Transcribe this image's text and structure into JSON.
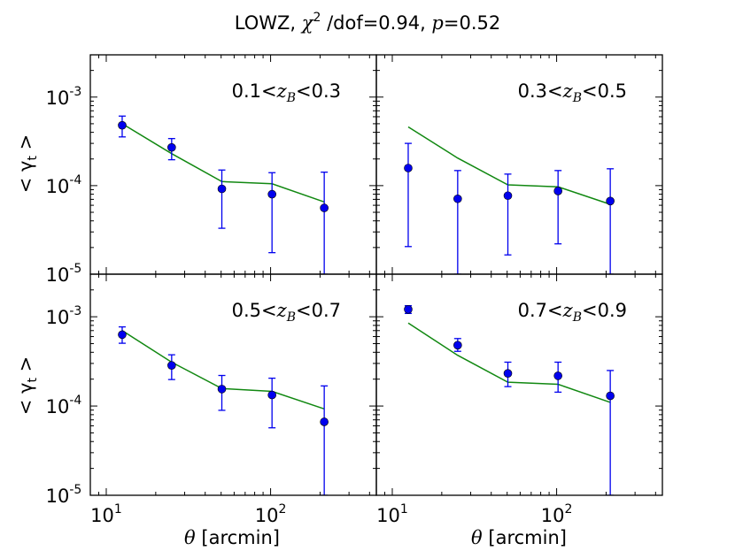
{
  "title": {
    "prefix": "LOWZ, ",
    "chi": "χ",
    "chi_sup": "2",
    "dof_text": " /dof=0.94, ",
    "p_symbol": "p",
    "p_text": "=0.52"
  },
  "xlabel": {
    "theta": "θ",
    "unit": " [arcmin]"
  },
  "ylabel": {
    "text": "< γ",
    "sub": "t",
    "close": " >"
  },
  "x_ticks": [
    {
      "base": "10",
      "exp": "1"
    },
    {
      "base": "10",
      "exp": "2"
    }
  ],
  "y_ticks": [
    {
      "base": "10",
      "exp": "-3"
    },
    {
      "base": "10",
      "exp": "-4"
    },
    {
      "base": "10",
      "exp": "-5"
    }
  ],
  "colors": {
    "points": "#0000ee",
    "model": "#118811",
    "axes": "#000000"
  },
  "chart_data": [
    {
      "type": "scatter",
      "panel": "top-left",
      "label": {
        "low": "0.1<",
        "var": "z",
        "sub": "B",
        "high": "<0.3"
      },
      "xscale": "log",
      "yscale": "log",
      "xlim": [
        8,
        440
      ],
      "ylim": [
        1e-05,
        0.003
      ],
      "x": [
        12.5,
        25,
        50.5,
        102,
        212
      ],
      "y": [
        0.00048,
        0.00027,
        9.2e-05,
        8e-05,
        5.6e-05
      ],
      "err_low": [
        0.000355,
        0.000196,
        3.3e-05,
        1.75e-05,
        1e-05
      ],
      "err_high": [
        0.00061,
        0.00034,
        0.00015,
        0.00014,
        0.000142
      ],
      "model": [
        0.0005,
        0.00023,
        0.000111,
        0.000105,
        6.55e-05
      ]
    },
    {
      "type": "scatter",
      "panel": "top-right",
      "label": {
        "low": "0.3<",
        "var": "z",
        "sub": "B",
        "high": "<0.5"
      },
      "xscale": "log",
      "yscale": "log",
      "xlim": [
        8,
        440
      ],
      "ylim": [
        1e-05,
        0.003
      ],
      "x": [
        12.5,
        25,
        50.5,
        102,
        212
      ],
      "y": [
        0.000158,
        7.1e-05,
        7.7e-05,
        8.7e-05,
        6.7e-05
      ],
      "err_low": [
        2.05e-05,
        1e-05,
        1.65e-05,
        2.2e-05,
        1e-05
      ],
      "err_high": [
        0.0003,
        0.000148,
        0.000135,
        0.000148,
        0.000155
      ],
      "model": [
        0.00046,
        0.000205,
        0.000102,
        9.7e-05,
        6.15e-05
      ]
    },
    {
      "type": "scatter",
      "panel": "bottom-left",
      "label": {
        "low": "0.5<",
        "var": "z",
        "sub": "B",
        "high": "<0.7"
      },
      "xscale": "log",
      "yscale": "log",
      "xlim": [
        8,
        440
      ],
      "ylim": [
        1e-05,
        0.003
      ],
      "x": [
        12.5,
        25,
        50.5,
        102,
        212
      ],
      "y": [
        0.00063,
        0.000285,
        0.000155,
        0.000133,
        6.65e-05
      ],
      "err_low": [
        0.000505,
        0.000198,
        8.95e-05,
        5.7e-05,
        1e-05
      ],
      "err_high": [
        0.00077,
        0.000375,
        0.00022,
        0.000205,
        0.000168
      ],
      "model": [
        0.0007,
        0.00031,
        0.000157,
        0.000146,
        9.3e-05
      ]
    },
    {
      "type": "scatter",
      "panel": "bottom-right",
      "label": {
        "low": "0.7<",
        "var": "z",
        "sub": "B",
        "high": "<0.9"
      },
      "xscale": "log",
      "yscale": "log",
      "xlim": [
        8,
        440
      ],
      "ylim": [
        1e-05,
        0.003
      ],
      "x": [
        12.5,
        25,
        50.5,
        102,
        212
      ],
      "y": [
        0.00121,
        0.00048,
        0.000232,
        0.000218,
        0.00013
      ],
      "err_low": [
        0.00109,
        0.00041,
        0.000165,
        0.000143,
        1e-05
      ],
      "err_high": [
        0.00133,
        0.00057,
        0.00031,
        0.00031,
        0.00025
      ],
      "model": [
        0.00085,
        0.00037,
        0.000185,
        0.000175,
        0.00011
      ]
    }
  ]
}
